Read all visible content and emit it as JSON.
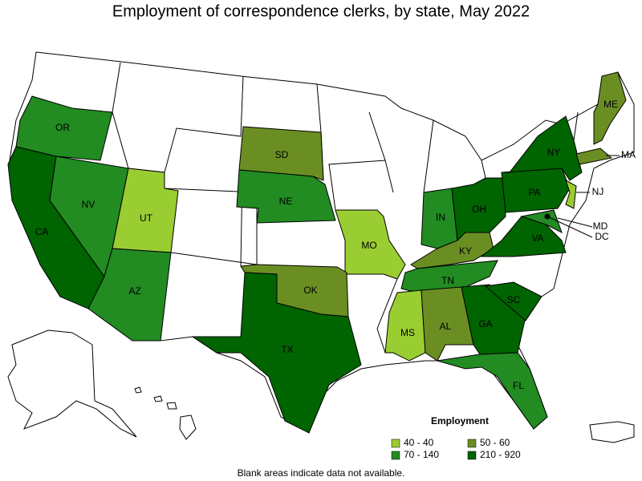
{
  "title": "Employment of correspondence clerks, by state, May 2022",
  "states": [
    {
      "label": "OR",
      "color": "#228b22"
    },
    {
      "label": "CA",
      "color": "#006400"
    },
    {
      "label": "NV",
      "color": "#228b22"
    },
    {
      "label": "UT",
      "color": "#9acd32"
    },
    {
      "label": "AZ",
      "color": "#228b22"
    },
    {
      "label": "SD",
      "color": "#6b8e23"
    },
    {
      "label": "NE",
      "color": "#228b22"
    },
    {
      "label": "MO",
      "color": "#9acd32"
    },
    {
      "label": "OK",
      "color": "#6b8e23"
    },
    {
      "label": "TX",
      "color": "#006400"
    },
    {
      "label": "IN",
      "color": "#228b22"
    },
    {
      "label": "OH",
      "color": "#006400"
    },
    {
      "label": "KY",
      "color": "#6b8e23"
    },
    {
      "label": "TN",
      "color": "#228b22"
    },
    {
      "label": "MS",
      "color": "#9acd32"
    },
    {
      "label": "AL",
      "color": "#6b8e23"
    },
    {
      "label": "GA",
      "color": "#006400"
    },
    {
      "label": "SC",
      "color": "#006400"
    },
    {
      "label": "FL",
      "color": "#228b22"
    },
    {
      "label": "VA",
      "color": "#006400"
    },
    {
      "label": "PA",
      "color": "#006400"
    },
    {
      "label": "NY",
      "color": "#006400"
    },
    {
      "label": "NJ",
      "color": "#9acd32"
    },
    {
      "label": "MD",
      "color": "#228b22"
    },
    {
      "label": "MA",
      "color": "#6b8e23"
    },
    {
      "label": "ME",
      "color": "#6b8e23"
    },
    {
      "label": "DC",
      "color": "#006400"
    }
  ],
  "legend": {
    "title": "Employment",
    "items": [
      {
        "label": "40 - 40",
        "color": "#9acd32"
      },
      {
        "label": "50 - 60",
        "color": "#6b8e23"
      },
      {
        "label": "70 - 140",
        "color": "#228b22"
      },
      {
        "label": "210 - 920",
        "color": "#006400"
      }
    ]
  },
  "note": "Blank areas indicate data not available."
}
